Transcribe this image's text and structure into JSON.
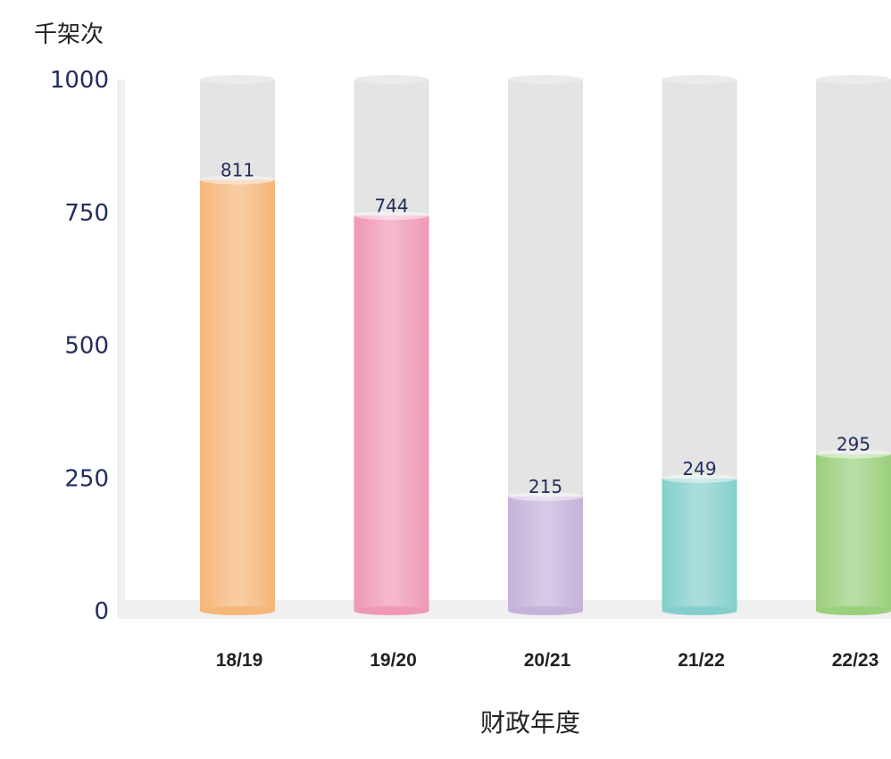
{
  "chart_data": {
    "type": "bar",
    "ylabel": "千架次",
    "xlabel": "财政年度",
    "categories": [
      "18/19",
      "19/20",
      "20/21",
      "21/22",
      "22/23"
    ],
    "values": [
      811,
      744,
      215,
      249,
      295
    ],
    "ylim": [
      0,
      1000
    ],
    "yticks": [
      0,
      250,
      500,
      750,
      1000
    ],
    "grid": false,
    "bar_style": "cylinder",
    "colors": {
      "bars": [
        "#F5B679",
        "#EF98B6",
        "#C5B2DA",
        "#84CFCB",
        "#9ACF7B"
      ],
      "track": "#E4E4E4",
      "axis": "#F0F0F0",
      "tick_text": "#1F2D5C",
      "value_text": "#1F2D5C",
      "category_text": "#222222"
    }
  }
}
